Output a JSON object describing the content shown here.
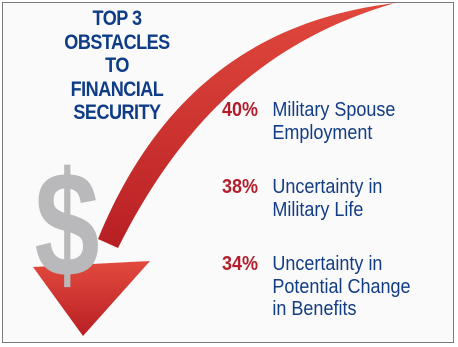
{
  "colors": {
    "title": "#0e3c86",
    "label": "#123c84",
    "percent": "#b21e2b",
    "arrow": "#c62a2a",
    "dollar": "#b9b9bb",
    "border": "#7a7a7a"
  },
  "icons": {
    "arrow": "curved-down-arrow-icon",
    "dollar": "dollar-sign-icon"
  },
  "title_lines": [
    "TOP 3",
    "OBSTACLES",
    "TO",
    "FINANCIAL",
    "SECURITY"
  ],
  "dollar_symbol": "$",
  "chart_data": {
    "type": "table",
    "title": "TOP 3 OBSTACLES TO FINANCIAL SECURITY",
    "items": [
      {
        "percent_label": "40%",
        "value": 40,
        "label_lines": [
          "Military Spouse",
          "Employment"
        ]
      },
      {
        "percent_label": "38%",
        "value": 38,
        "label_lines": [
          "Uncertainty in",
          "Military Life"
        ]
      },
      {
        "percent_label": "34%",
        "value": 34,
        "label_lines": [
          "Uncertainty in",
          "Potential Change",
          "in Benefits"
        ]
      }
    ]
  }
}
